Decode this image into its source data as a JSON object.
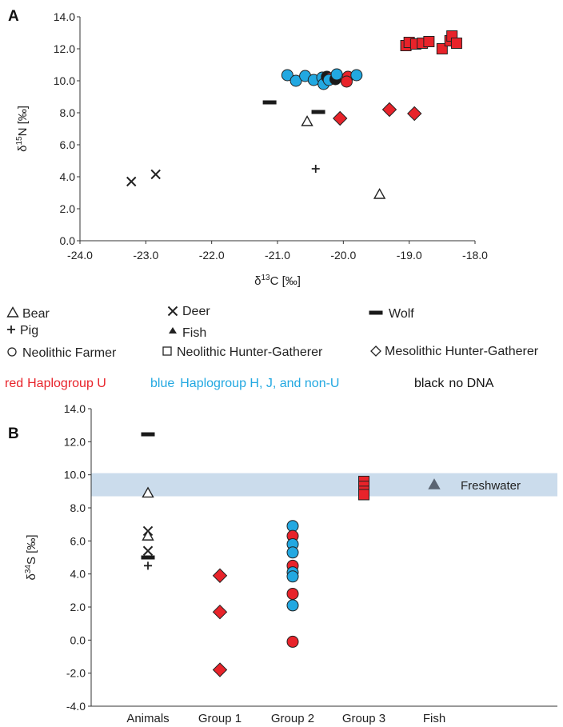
{
  "chart_data": [
    {
      "panel": "A",
      "type": "scatter",
      "xlabel_base": "δ",
      "xlabel_sup": "13",
      "xlabel_rest": "C [‰]",
      "ylabel_base": "δ",
      "ylabel_sup": "15",
      "ylabel_rest": "N [‰]",
      "xlim": [
        -24,
        -18
      ],
      "ylim": [
        0,
        14
      ],
      "xticks": [
        -24,
        -23,
        -22,
        -21,
        -20,
        -19,
        -18
      ],
      "xtick_labels": [
        "-24.0",
        "-23.0",
        "-22.0",
        "-21.0",
        "-20.0",
        "-19.0",
        "-18.0"
      ],
      "yticks": [
        0,
        2,
        4,
        6,
        8,
        10,
        12,
        14
      ],
      "ytick_labels": [
        "0.0",
        "2.0",
        "4.0",
        "6.0",
        "8.0",
        "10.0",
        "12.0",
        "14.0"
      ],
      "points": [
        {
          "m": "cross",
          "c": "black",
          "x": -23.22,
          "y": 3.7
        },
        {
          "m": "cross",
          "c": "black",
          "x": -22.85,
          "y": 4.15
        },
        {
          "m": "dash",
          "c": "black",
          "x": -21.12,
          "y": 8.65
        },
        {
          "m": "dash",
          "c": "black",
          "x": -20.38,
          "y": 8.05
        },
        {
          "m": "triangle",
          "c": "black",
          "x": -20.55,
          "y": 7.45
        },
        {
          "m": "plus",
          "c": "black",
          "x": -20.42,
          "y": 4.5
        },
        {
          "m": "triangle",
          "c": "black",
          "x": -19.45,
          "y": 2.9
        },
        {
          "m": "circle",
          "c": "blue",
          "x": -20.85,
          "y": 10.35
        },
        {
          "m": "circle",
          "c": "blue",
          "x": -20.72,
          "y": 10.0
        },
        {
          "m": "circle",
          "c": "blue",
          "x": -20.58,
          "y": 10.3
        },
        {
          "m": "circle",
          "c": "blue",
          "x": -20.45,
          "y": 10.05
        },
        {
          "m": "circle",
          "c": "blue",
          "x": -20.32,
          "y": 10.2
        },
        {
          "m": "circle",
          "c": "blue",
          "x": -20.3,
          "y": 9.8
        },
        {
          "m": "circle",
          "c": "black",
          "x": -20.25,
          "y": 10.25
        },
        {
          "m": "circle",
          "c": "red",
          "x": -20.2,
          "y": 10.15
        },
        {
          "m": "circle",
          "c": "blue",
          "x": -20.22,
          "y": 10.05
        },
        {
          "m": "circle",
          "c": "black",
          "x": -20.12,
          "y": 10.1
        },
        {
          "m": "circle",
          "c": "blue",
          "x": -20.1,
          "y": 10.4
        },
        {
          "m": "circle",
          "c": "red",
          "x": -19.93,
          "y": 10.25
        },
        {
          "m": "circle",
          "c": "red",
          "x": -19.95,
          "y": 9.95
        },
        {
          "m": "circle",
          "c": "blue",
          "x": -19.8,
          "y": 10.35
        },
        {
          "m": "diamond",
          "c": "red",
          "x": -20.05,
          "y": 7.65
        },
        {
          "m": "diamond",
          "c": "red",
          "x": -19.3,
          "y": 8.2
        },
        {
          "m": "diamond",
          "c": "red",
          "x": -18.92,
          "y": 7.95
        },
        {
          "m": "square",
          "c": "red",
          "x": -19.05,
          "y": 12.2
        },
        {
          "m": "square",
          "c": "red",
          "x": -19.0,
          "y": 12.4
        },
        {
          "m": "square",
          "c": "red",
          "x": -18.9,
          "y": 12.3
        },
        {
          "m": "square",
          "c": "red",
          "x": -18.8,
          "y": 12.35
        },
        {
          "m": "square",
          "c": "red",
          "x": -18.7,
          "y": 12.45
        },
        {
          "m": "square",
          "c": "red",
          "x": -18.5,
          "y": 12.0
        },
        {
          "m": "square",
          "c": "red",
          "x": -18.38,
          "y": 12.5
        },
        {
          "m": "square",
          "c": "red",
          "x": -18.35,
          "y": 12.8
        },
        {
          "m": "square",
          "c": "red",
          "x": -18.28,
          "y": 12.35
        }
      ]
    },
    {
      "panel": "B",
      "type": "scatter",
      "ylabel_base": "δ",
      "ylabel_sup": "34",
      "ylabel_rest": "S [‰]",
      "ylim": [
        -4,
        14
      ],
      "yticks": [
        -4,
        -2,
        0,
        2,
        4,
        6,
        8,
        10,
        12,
        14
      ],
      "ytick_labels": [
        "-4.0",
        "-2.0",
        "0.0",
        "2.0",
        "4.0",
        "6.0",
        "8.0",
        "10.0",
        "12.0",
        "14.0"
      ],
      "categories": [
        "Animals",
        "Group 1",
        "Group 2",
        "Group 3",
        "Fish"
      ],
      "band": {
        "label": "Freshwater",
        "y0": 8.7,
        "y1": 10.1
      },
      "points": [
        {
          "m": "dash",
          "c": "black",
          "cat": 0,
          "y": 12.45
        },
        {
          "m": "triangle",
          "c": "black",
          "cat": 0,
          "y": 8.9
        },
        {
          "m": "cross",
          "c": "black",
          "cat": 0,
          "y": 6.6
        },
        {
          "m": "triangle",
          "c": "black",
          "cat": 0,
          "y": 6.3
        },
        {
          "m": "cross",
          "c": "black",
          "cat": 0,
          "y": 5.4
        },
        {
          "m": "dash",
          "c": "black",
          "cat": 0,
          "y": 5.0
        },
        {
          "m": "plus",
          "c": "black",
          "cat": 0,
          "y": 4.5
        },
        {
          "m": "diamond",
          "c": "red",
          "cat": 1,
          "y": 3.9
        },
        {
          "m": "diamond",
          "c": "red",
          "cat": 1,
          "y": 1.7
        },
        {
          "m": "diamond",
          "c": "red",
          "cat": 1,
          "y": -1.8
        },
        {
          "m": "circle",
          "c": "blue",
          "cat": 2,
          "y": 6.9
        },
        {
          "m": "circle",
          "c": "red",
          "cat": 2,
          "y": 6.3
        },
        {
          "m": "circle",
          "c": "blue",
          "cat": 2,
          "y": 5.8
        },
        {
          "m": "circle",
          "c": "blue",
          "cat": 2,
          "y": 5.3
        },
        {
          "m": "circle",
          "c": "red",
          "cat": 2,
          "y": 4.5
        },
        {
          "m": "circle",
          "c": "blue",
          "cat": 2,
          "y": 4.1
        },
        {
          "m": "circle",
          "c": "blue",
          "cat": 2,
          "y": 3.85
        },
        {
          "m": "circle",
          "c": "red",
          "cat": 2,
          "y": 2.8
        },
        {
          "m": "circle",
          "c": "blue",
          "cat": 2,
          "y": 2.1
        },
        {
          "m": "circle",
          "c": "red",
          "cat": 2,
          "y": -0.1
        },
        {
          "m": "square",
          "c": "red",
          "cat": 3,
          "y": 9.6
        },
        {
          "m": "square",
          "c": "red",
          "cat": 3,
          "y": 9.3
        },
        {
          "m": "square",
          "c": "red",
          "cat": 3,
          "y": 9.0
        },
        {
          "m": "square",
          "c": "red",
          "cat": 3,
          "y": 8.8
        },
        {
          "m": "triangle",
          "c": "fish",
          "cat": 4,
          "y": 9.4
        }
      ]
    }
  ],
  "colors": {
    "red": "#e8232a",
    "blue": "#22a8e1",
    "black": "#1a1a1a",
    "fish": "#5a6472",
    "band": "#c5d8ea"
  },
  "legend": {
    "bear": "Bear",
    "deer": "Deer",
    "wolf": "Wolf",
    "pig": "Pig",
    "fish": "Fish",
    "neolithic_farmer": "Neolithic Farmer",
    "neolithic_hg": "Neolithic Hunter-Gatherer",
    "mesolithic_hg": "Mesolithic Hunter-Gatherer"
  },
  "color_legend": {
    "red_word": "red",
    "red_desc": "Haplogroup U",
    "blue_word": "blue",
    "blue_desc": "Haplogroup H, J, and non-U",
    "black_word": "black",
    "black_desc": "no DNA"
  }
}
